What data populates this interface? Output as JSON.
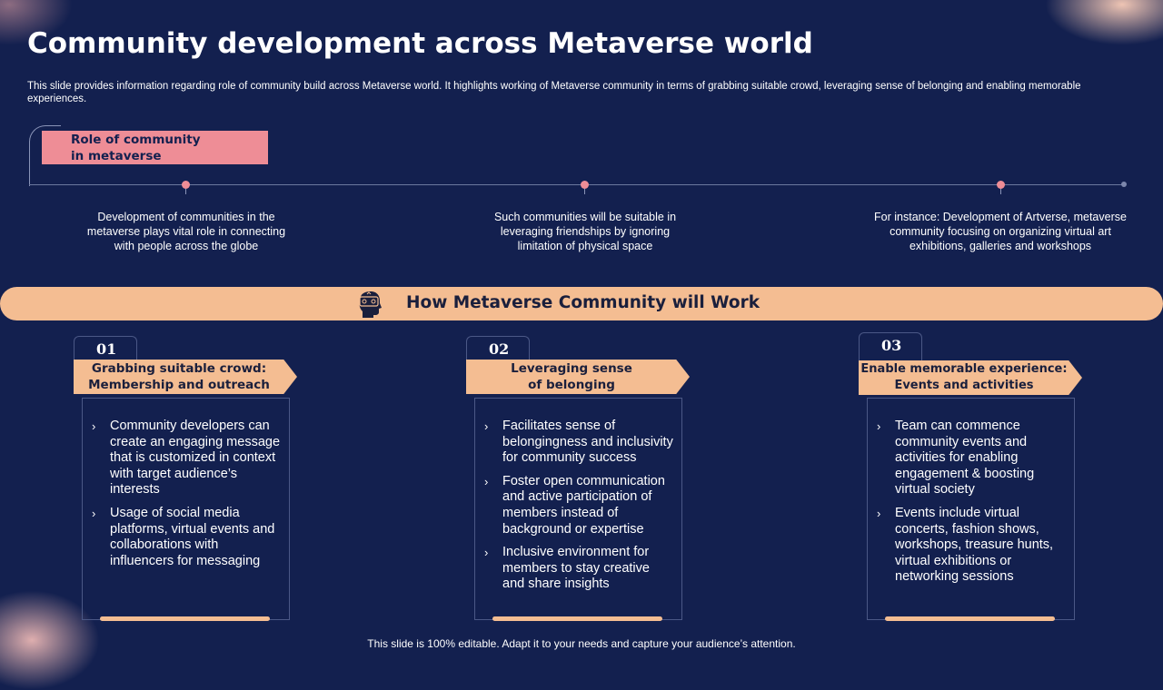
{
  "slide": {
    "title": "Community development across Metaverse world",
    "subtitle": "This slide provides information regarding role of community build across Metaverse world. It highlights working of Metaverse community in terms of grabbing suitable crowd, leveraging sense of belonging and enabling memorable experiences."
  },
  "timeline": {
    "label_line1": "Role of community",
    "label_line2": "in metaverse",
    "points": [
      {
        "lines": [
          "Development  of communities in the",
          "metaverse  plays vital role in connecting",
          "with people  across the globe"
        ]
      },
      {
        "lines": [
          "Such communities will be suitable in",
          "leveraging  friendships  by ignoring",
          "limitation of physical space"
        ]
      },
      {
        "lines": [
          "For instance: Development  of Artverse,  metaverse",
          "community focusing on organizing virtual art",
          "exhibitions, galleries and workshops"
        ]
      }
    ]
  },
  "banner": {
    "title": "How Metaverse Community  will Work",
    "icon": "vr-headset-head-icon"
  },
  "cards": [
    {
      "number": "01",
      "heading_line1": "Grabbing suitable crowd:",
      "heading_line2": "Membership and outreach",
      "bullets": [
        "Community developers can create an engaging message that is customized in context with target audience’s interests",
        "Usage of social media platforms, virtual events and collaborations with influencers for messaging"
      ]
    },
    {
      "number": "02",
      "heading_line1": "Leveraging sense",
      "heading_line2": "of belonging",
      "bullets": [
        "Facilitates sense of belongingness and inclusivity for community success",
        "Foster open communication and active participation of members instead of background or expertise",
        "Inclusive environment for members to stay creative and share insights"
      ]
    },
    {
      "number": "03",
      "heading_line1": "Enable memorable experience:",
      "heading_line2": "Events and activities",
      "bullets": [
        "Team can commence community events and activities for enabling engagement & boosting virtual society",
        "Events include virtual concerts, fashion shows, workshops, treasure hunts, virtual exhibitions or networking sessions"
      ]
    }
  ],
  "footer": "This slide is 100% editable. Adapt it to your needs and capture your audience’s attention.",
  "colors": {
    "background": "#13204f",
    "accent_pink": "#ee8d96",
    "accent_peach": "#f4bd92"
  }
}
